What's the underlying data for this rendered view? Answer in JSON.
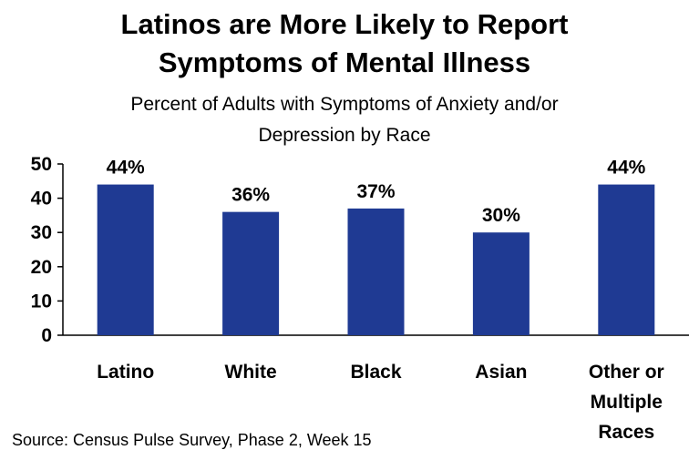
{
  "chart_data": {
    "type": "bar",
    "title_lines": [
      "Latinos are More Likely to Report",
      "Symptoms of Mental Illness"
    ],
    "subtitle_lines": [
      "Percent of Adults with Symptoms of Anxiety and/or",
      "Depression by Race"
    ],
    "categories": [
      [
        "Latino"
      ],
      [
        "White"
      ],
      [
        "Black"
      ],
      [
        "Asian"
      ],
      [
        "Other or",
        "Multiple",
        "Races"
      ]
    ],
    "values": [
      44,
      36,
      37,
      30,
      44
    ],
    "data_labels": [
      "44%",
      "36%",
      "37%",
      "30%",
      "44%"
    ],
    "yticks": [
      0,
      10,
      20,
      30,
      40,
      50
    ],
    "ylim": [
      0,
      50
    ],
    "xlabel": "",
    "ylabel": "",
    "grid": false,
    "legend": "none",
    "bar_color": "#1F3A93",
    "source": "Source: Census Pulse Survey, Phase 2, Week 15"
  }
}
